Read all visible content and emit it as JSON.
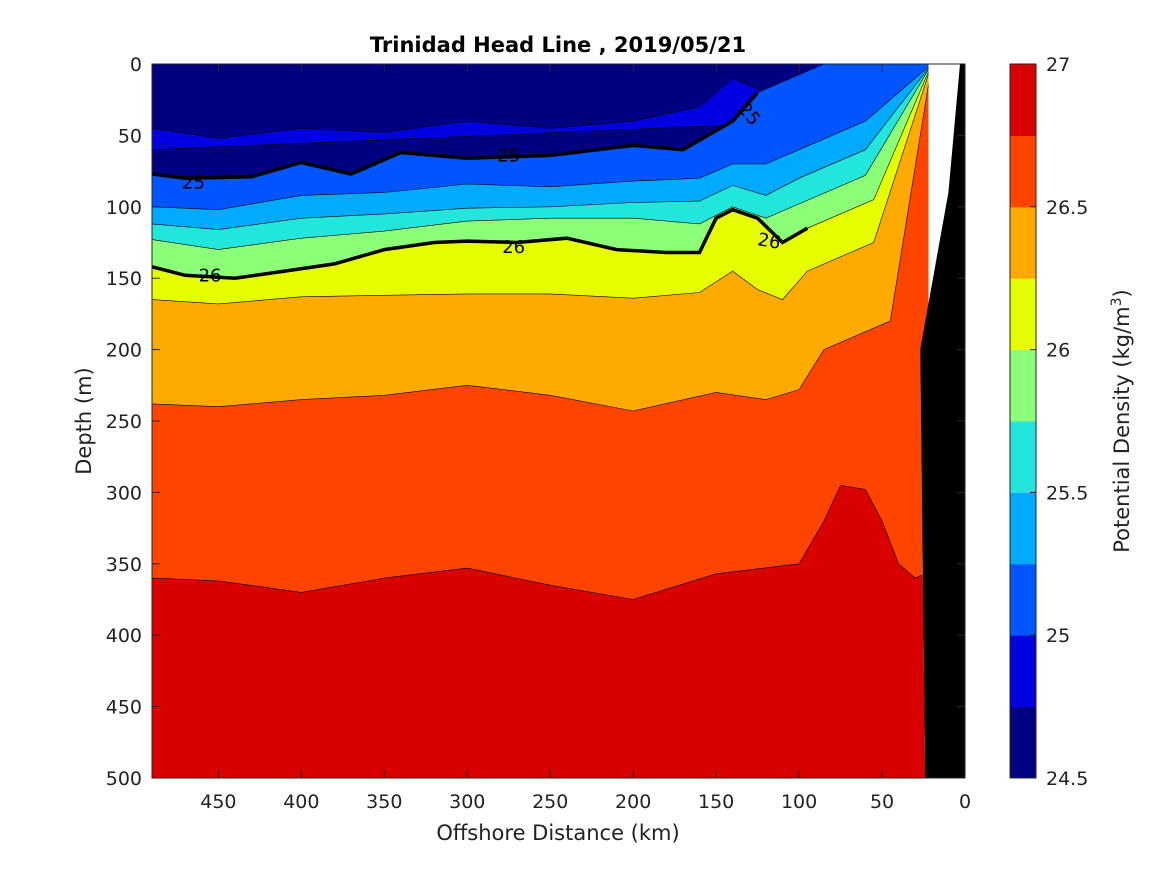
{
  "chart_data": {
    "type": "contour",
    "title": "Trinidad Head Line , 2019/05/21",
    "xlabel": "Offshore Distance (km)",
    "ylabel": "Depth (m)",
    "colorbar_label": "Potential Density (kg/m",
    "colorbar_label_sup": "3",
    "colorbar_label_end": ")",
    "xlim": [
      490,
      0
    ],
    "ylim": [
      0,
      500
    ],
    "x_reversed": true,
    "y_reversed": true,
    "xticks": [
      450,
      400,
      350,
      300,
      250,
      200,
      150,
      100,
      50,
      0
    ],
    "yticks": [
      0,
      50,
      100,
      150,
      200,
      250,
      300,
      350,
      400,
      450,
      500
    ],
    "colorbar_ticks": [
      27,
      26.5,
      26,
      25.5,
      25,
      24.5
    ],
    "colorbar_ticks_text": [
      "27",
      "26.5",
      "26",
      "25.5",
      "25",
      "24.5"
    ],
    "clim": [
      24.5,
      27
    ],
    "levels": [
      24.5,
      24.75,
      25,
      25.25,
      25.5,
      25.75,
      26,
      26.25,
      26.5,
      26.75,
      27
    ],
    "colormap": [
      "#000080",
      "#0000e0",
      "#0055ff",
      "#00aaff",
      "#22e6dc",
      "#8cff78",
      "#e6ff00",
      "#ffaa00",
      "#ff4400",
      "#d90000"
    ],
    "bold_contours": [
      25,
      26
    ],
    "contour_labels": [
      "25",
      "25",
      "25",
      "26",
      "26",
      "26"
    ],
    "boundaries": {
      "25": [
        [
          490,
          77
        ],
        [
          470,
          80
        ],
        [
          430,
          79
        ],
        [
          400,
          69
        ],
        [
          370,
          77
        ],
        [
          340,
          62
        ],
        [
          300,
          66
        ],
        [
          250,
          64
        ],
        [
          200,
          57
        ],
        [
          170,
          60
        ],
        [
          140,
          40
        ],
        [
          125,
          20
        ]
      ],
      "25.25": [
        [
          490,
          100
        ],
        [
          450,
          102
        ],
        [
          400,
          92
        ],
        [
          350,
          90
        ],
        [
          300,
          84
        ],
        [
          250,
          86
        ],
        [
          200,
          82
        ],
        [
          160,
          80
        ],
        [
          140,
          70
        ],
        [
          120,
          70
        ],
        [
          100,
          60
        ]
      ],
      "25.5": [
        [
          490,
          112
        ],
        [
          450,
          116
        ],
        [
          400,
          108
        ],
        [
          350,
          105
        ],
        [
          300,
          101
        ],
        [
          250,
          100
        ],
        [
          200,
          97
        ],
        [
          160,
          96
        ],
        [
          140,
          85
        ],
        [
          120,
          92
        ],
        [
          100,
          80
        ]
      ],
      "25.75": [
        [
          490,
          123
        ],
        [
          450,
          130
        ],
        [
          400,
          122
        ],
        [
          350,
          117
        ],
        [
          300,
          110
        ],
        [
          250,
          108
        ],
        [
          200,
          108
        ],
        [
          160,
          112
        ],
        [
          140,
          100
        ],
        [
          120,
          108
        ],
        [
          100,
          98
        ]
      ],
      "26": [
        [
          490,
          142
        ],
        [
          470,
          148
        ],
        [
          440,
          150
        ],
        [
          410,
          145
        ],
        [
          380,
          140
        ],
        [
          350,
          130
        ],
        [
          320,
          125
        ],
        [
          300,
          124
        ],
        [
          270,
          125
        ],
        [
          240,
          122
        ],
        [
          210,
          130
        ],
        [
          180,
          132
        ],
        [
          160,
          132
        ],
        [
          150,
          108
        ],
        [
          140,
          102
        ],
        [
          125,
          108
        ],
        [
          110,
          125
        ],
        [
          95,
          115
        ]
      ],
      "26.25": [
        [
          490,
          165
        ],
        [
          450,
          168
        ],
        [
          400,
          163
        ],
        [
          350,
          162
        ],
        [
          300,
          161
        ],
        [
          250,
          161
        ],
        [
          200,
          164
        ],
        [
          160,
          160
        ],
        [
          140,
          145
        ],
        [
          125,
          158
        ],
        [
          110,
          165
        ],
        [
          95,
          145
        ]
      ],
      "26.5": [
        [
          490,
          238
        ],
        [
          450,
          240
        ],
        [
          400,
          235
        ],
        [
          350,
          232
        ],
        [
          300,
          225
        ],
        [
          250,
          232
        ],
        [
          200,
          243
        ],
        [
          150,
          230
        ],
        [
          120,
          235
        ],
        [
          100,
          228
        ],
        [
          85,
          200
        ]
      ],
      "26.75": [
        [
          490,
          360
        ],
        [
          450,
          362
        ],
        [
          400,
          370
        ],
        [
          350,
          360
        ],
        [
          300,
          353
        ],
        [
          250,
          365
        ],
        [
          200,
          375
        ],
        [
          150,
          357
        ],
        [
          100,
          350
        ],
        [
          85,
          320
        ],
        [
          75,
          295
        ],
        [
          60,
          298
        ],
        [
          50,
          320
        ],
        [
          40,
          350
        ],
        [
          30,
          360
        ]
      ]
    },
    "coast": [
      [
        490,
        500
      ],
      [
        490,
        0
      ],
      [
        20,
        0
      ],
      [
        20,
        500
      ]
    ],
    "bottom": [
      [
        3,
        0
      ],
      [
        0,
        0
      ],
      [
        0,
        500
      ],
      [
        24,
        500
      ],
      [
        27,
        200
      ],
      [
        10,
        90
      ]
    ]
  }
}
